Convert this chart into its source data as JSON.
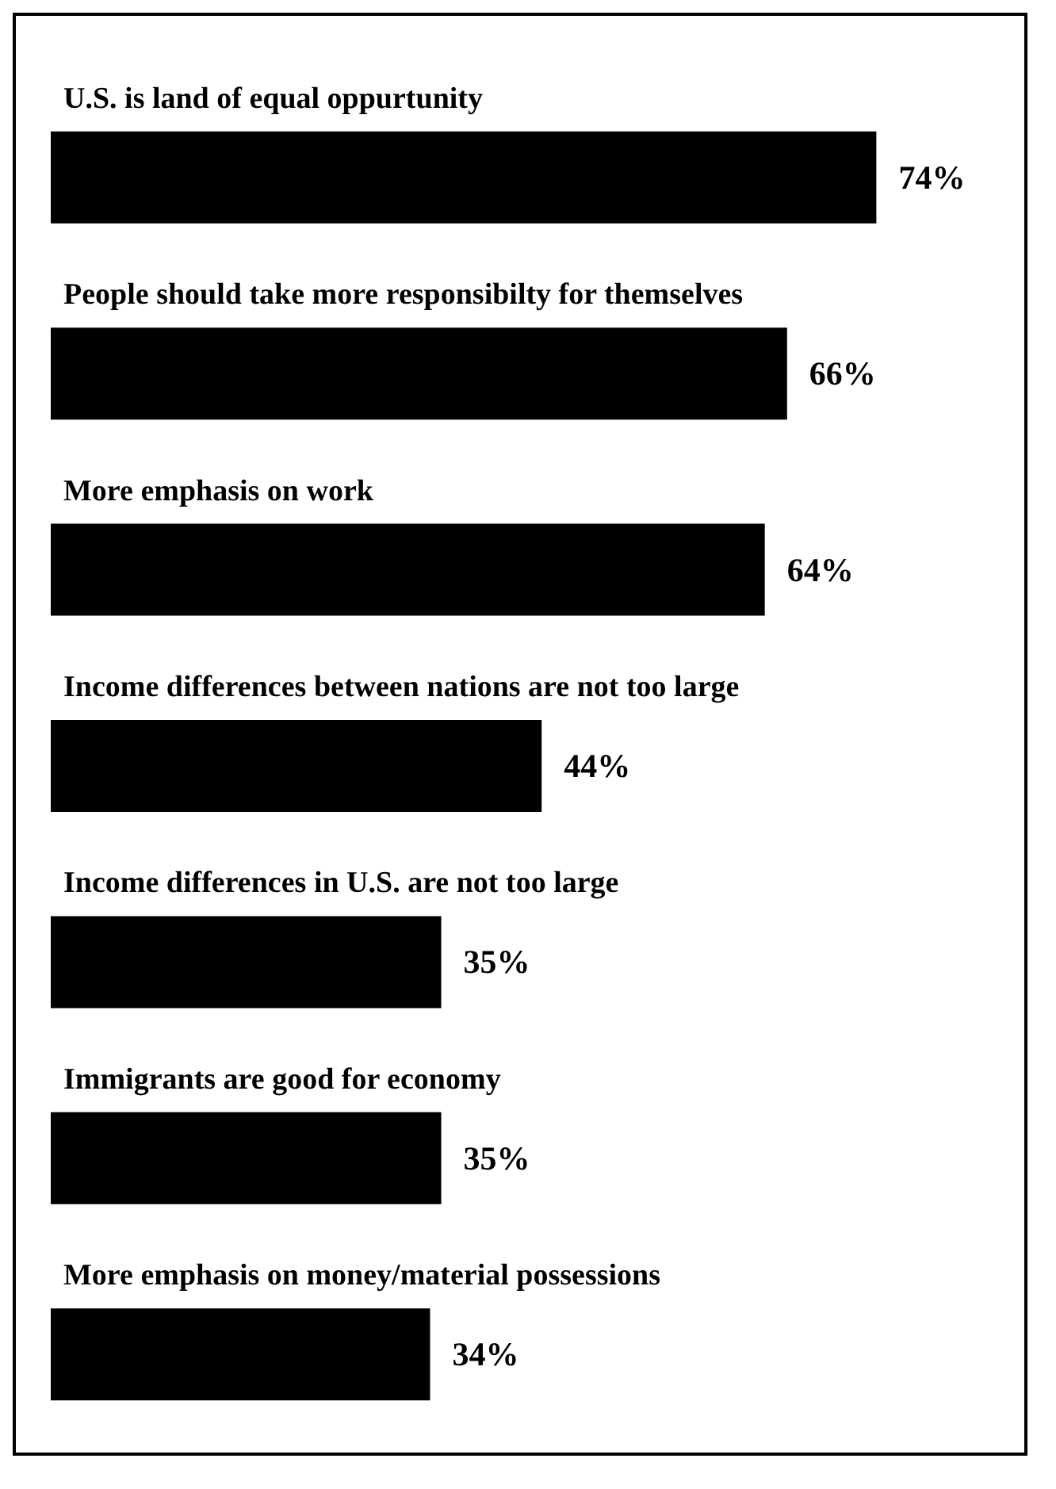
{
  "chart_data": {
    "type": "bar",
    "orientation": "horizontal",
    "categories": [
      "U.S. is land of equal oppurtunity",
      "People should take more responsibilty for themselves",
      "More emphasis on work",
      "Income differences between nations are not too large",
      "Income differences in U.S. are not too large",
      "Immigrants are good for economy",
      "More emphasis on money/material possessions"
    ],
    "values": [
      74,
      66,
      64,
      44,
      35,
      35,
      34
    ],
    "value_labels": [
      "74%",
      "66%",
      "64%",
      "44%",
      "35%",
      "35%",
      "34%"
    ],
    "color": "#000000"
  }
}
